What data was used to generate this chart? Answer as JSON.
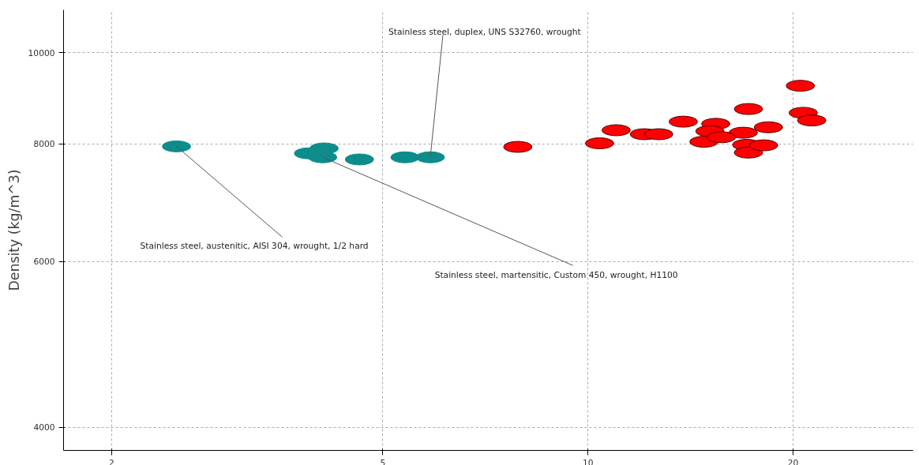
{
  "chart_data": {
    "type": "scatter",
    "ylabel": "Density (kg/m^3)",
    "log": "xy",
    "xlim": [
      1.7,
      30
    ],
    "ylim": [
      3780,
      11100
    ],
    "xticks": [
      2,
      5,
      10,
      20
    ],
    "yticks": [
      4000,
      6000,
      8000,
      10000
    ],
    "grid": true,
    "marker": "circle",
    "series": [
      {
        "color": "#0d8c8c",
        "x": [
          2.49,
          3.89,
          4.1,
          4.08,
          4.62,
          5.39,
          5.87
        ],
        "values": [
          7950,
          7815,
          7910,
          7740,
          7700,
          7740,
          7740
        ]
      },
      {
        "color": "#ff0000",
        "x": [
          7.89,
          10.4,
          11.0,
          12.1,
          12.7,
          13.8,
          15.4,
          14.8,
          15.1,
          17.2,
          16.9,
          17.1,
          17.2,
          18.4,
          18.1,
          20.5,
          20.7,
          21.3,
          15.7
        ],
        "values": [
          7940,
          8010,
          8270,
          8190,
          8190,
          8445,
          8400,
          8040,
          8250,
          8710,
          8220,
          7980,
          7830,
          8330,
          7970,
          9220,
          8630,
          8470,
          8130
        ]
      }
    ],
    "annotations": [
      {
        "text": "Stainless steel, duplex, UNS S32760, wrought",
        "x": 5.87,
        "y": 7740
      },
      {
        "text": "Stainless steel, austenitic, AISI 304, wrought, 1/2 hard",
        "x": 2.49,
        "y": 7950
      },
      {
        "text": "Stainless steel, martensitic, Custom 450, wrought, H1100",
        "x": 4.08,
        "y": 7740
      }
    ]
  }
}
